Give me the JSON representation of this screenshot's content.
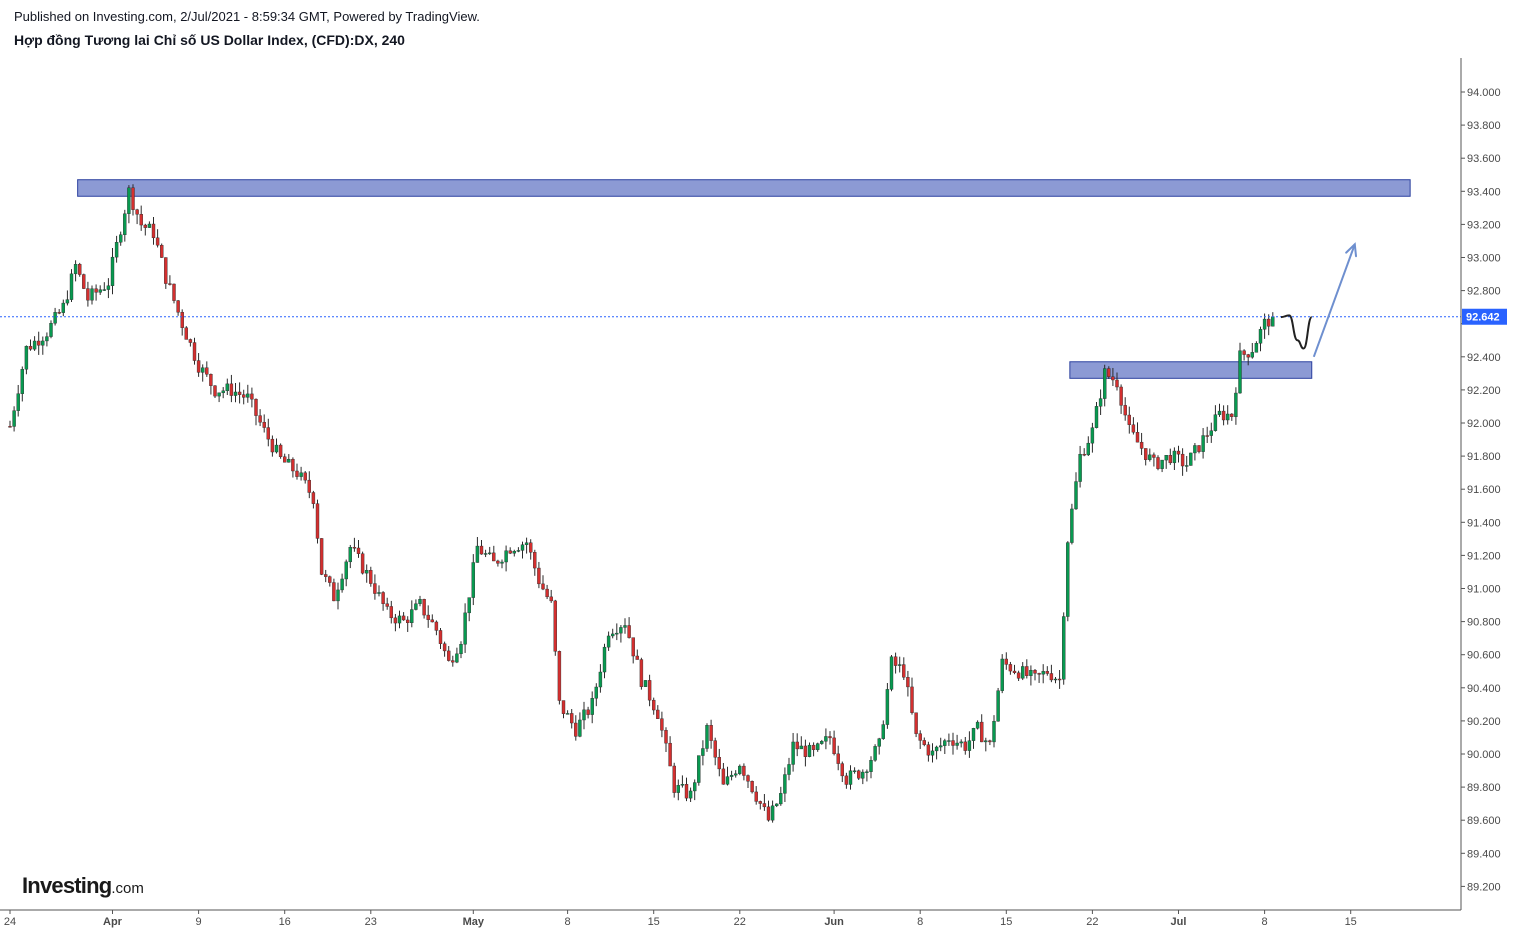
{
  "header": {
    "published": "Published on Investing.com, 2/Jul/2021 - 8:59:34 GMT, Powered by TradingView.",
    "title": "Hợp đồng Tương lai Chỉ số US Dollar Index, (CFD):DX, 240"
  },
  "logo": {
    "main": "Investing",
    "suffix": ".com"
  },
  "colors": {
    "up": "#089950",
    "down": "#d32f2f",
    "wick": "#2b2b2b",
    "zone_fill": "#8c9ad4",
    "zone_border": "#2a3f9f",
    "price_line": "#2962ff",
    "price_tag": "#2962ff",
    "forecast_arrow": "#6e8fcf",
    "forecast_curve": "#222222",
    "axis": "#555555"
  },
  "chart_data": {
    "type": "candlestick",
    "timeframe": "240",
    "symbol": "DX",
    "y_axis": {
      "min": 89.1,
      "max": 94.25,
      "ticks": [
        "94.000",
        "93.800",
        "93.600",
        "93.400",
        "93.200",
        "93.000",
        "92.800",
        "92.600",
        "92.400",
        "92.200",
        "92.000",
        "91.800",
        "91.600",
        "91.400",
        "91.200",
        "91.000",
        "90.800",
        "90.600",
        "90.400",
        "90.200",
        "90.000",
        "89.800",
        "89.600",
        "89.400",
        "89.200"
      ]
    },
    "x_axis": {
      "labels": [
        "24",
        "Apr",
        "9",
        "16",
        "23",
        "May",
        "8",
        "15",
        "22",
        "Jun",
        "8",
        "15",
        "22",
        "Jul",
        "8",
        "15"
      ],
      "bold_labels": [
        "Apr",
        "May",
        "Jun",
        "Jul"
      ]
    },
    "last_price": 92.642,
    "last_price_label": "92.642",
    "close_path": [
      {
        "x": 0,
        "y": 91.98
      },
      {
        "x": 4,
        "y": 92.45
      },
      {
        "x": 9,
        "y": 92.55
      },
      {
        "x": 13,
        "y": 92.7
      },
      {
        "x": 16,
        "y": 92.95
      },
      {
        "x": 19,
        "y": 92.75
      },
      {
        "x": 24,
        "y": 92.85
      },
      {
        "x": 29,
        "y": 93.4
      },
      {
        "x": 32,
        "y": 93.2
      },
      {
        "x": 35,
        "y": 93.15
      },
      {
        "x": 38,
        "y": 92.88
      },
      {
        "x": 42,
        "y": 92.6
      },
      {
        "x": 46,
        "y": 92.35
      },
      {
        "x": 50,
        "y": 92.2
      },
      {
        "x": 54,
        "y": 92.2
      },
      {
        "x": 58,
        "y": 92.15
      },
      {
        "x": 62,
        "y": 91.95
      },
      {
        "x": 66,
        "y": 91.78
      },
      {
        "x": 70,
        "y": 91.7
      },
      {
        "x": 74,
        "y": 91.55
      },
      {
        "x": 76,
        "y": 91.1
      },
      {
        "x": 79,
        "y": 90.95
      },
      {
        "x": 83,
        "y": 91.25
      },
      {
        "x": 88,
        "y": 91.05
      },
      {
        "x": 92,
        "y": 90.85
      },
      {
        "x": 96,
        "y": 90.8
      },
      {
        "x": 100,
        "y": 90.9
      },
      {
        "x": 104,
        "y": 90.75
      },
      {
        "x": 107,
        "y": 90.55
      },
      {
        "x": 110,
        "y": 90.7
      },
      {
        "x": 114,
        "y": 91.25
      },
      {
        "x": 118,
        "y": 91.15
      },
      {
        "x": 122,
        "y": 91.25
      },
      {
        "x": 126,
        "y": 91.28
      },
      {
        "x": 129,
        "y": 91.05
      },
      {
        "x": 132,
        "y": 90.9
      },
      {
        "x": 134,
        "y": 90.3
      },
      {
        "x": 138,
        "y": 90.15
      },
      {
        "x": 142,
        "y": 90.3
      },
      {
        "x": 146,
        "y": 90.75
      },
      {
        "x": 150,
        "y": 90.8
      },
      {
        "x": 154,
        "y": 90.45
      },
      {
        "x": 158,
        "y": 90.25
      },
      {
        "x": 162,
        "y": 89.8
      },
      {
        "x": 166,
        "y": 89.75
      },
      {
        "x": 170,
        "y": 90.15
      },
      {
        "x": 174,
        "y": 89.8
      },
      {
        "x": 178,
        "y": 89.95
      },
      {
        "x": 182,
        "y": 89.75
      },
      {
        "x": 185,
        "y": 89.6
      },
      {
        "x": 188,
        "y": 89.75
      },
      {
        "x": 191,
        "y": 90.05
      },
      {
        "x": 196,
        "y": 90.0
      },
      {
        "x": 200,
        "y": 90.1
      },
      {
        "x": 204,
        "y": 89.85
      },
      {
        "x": 208,
        "y": 89.9
      },
      {
        "x": 212,
        "y": 90.05
      },
      {
        "x": 215,
        "y": 90.55
      },
      {
        "x": 218,
        "y": 90.5
      },
      {
        "x": 221,
        "y": 90.1
      },
      {
        "x": 225,
        "y": 90.0
      },
      {
        "x": 229,
        "y": 90.1
      },
      {
        "x": 233,
        "y": 90.05
      },
      {
        "x": 236,
        "y": 90.15
      },
      {
        "x": 239,
        "y": 90.05
      },
      {
        "x": 242,
        "y": 90.55
      },
      {
        "x": 246,
        "y": 90.5
      },
      {
        "x": 250,
        "y": 90.45
      },
      {
        "x": 253,
        "y": 90.5
      },
      {
        "x": 256,
        "y": 90.45
      },
      {
        "x": 258,
        "y": 91.3
      },
      {
        "x": 261,
        "y": 91.8
      },
      {
        "x": 264,
        "y": 91.95
      },
      {
        "x": 267,
        "y": 92.3
      },
      {
        "x": 270,
        "y": 92.25
      },
      {
        "x": 273,
        "y": 91.95
      },
      {
        "x": 276,
        "y": 91.85
      },
      {
        "x": 279,
        "y": 91.75
      },
      {
        "x": 283,
        "y": 91.8
      },
      {
        "x": 287,
        "y": 91.75
      },
      {
        "x": 291,
        "y": 91.9
      },
      {
        "x": 295,
        "y": 92.05
      },
      {
        "x": 298,
        "y": 92.05
      },
      {
        "x": 300,
        "y": 92.4
      },
      {
        "x": 303,
        "y": 92.45
      },
      {
        "x": 306,
        "y": 92.6
      },
      {
        "x": 308,
        "y": 92.64
      }
    ],
    "n_candles": 309,
    "x_label_candle_index": [
      0,
      25,
      46,
      67,
      88,
      113,
      136,
      157,
      178,
      201,
      222,
      243,
      264,
      285,
      306,
      327
    ],
    "axis_candle_extent": [
      0,
      352
    ],
    "zones": [
      {
        "name": "resistance-zone",
        "x0": 16.5,
        "x1": 341.5,
        "y_low": 93.37,
        "y_high": 93.47
      },
      {
        "name": "support-zone",
        "x0": 258.5,
        "x1": 317.5,
        "y_low": 92.27,
        "y_high": 92.37
      }
    ],
    "forecast_curve": [
      {
        "x": 310,
        "y": 92.64
      },
      {
        "x": 312,
        "y": 92.65
      },
      {
        "x": 314,
        "y": 92.5
      },
      {
        "x": 315.5,
        "y": 92.45
      },
      {
        "x": 317.5,
        "y": 92.64
      }
    ],
    "forecast_arrow": {
      "from": {
        "x": 318,
        "y": 92.4
      },
      "to": {
        "x": 328,
        "y": 93.08
      }
    }
  }
}
